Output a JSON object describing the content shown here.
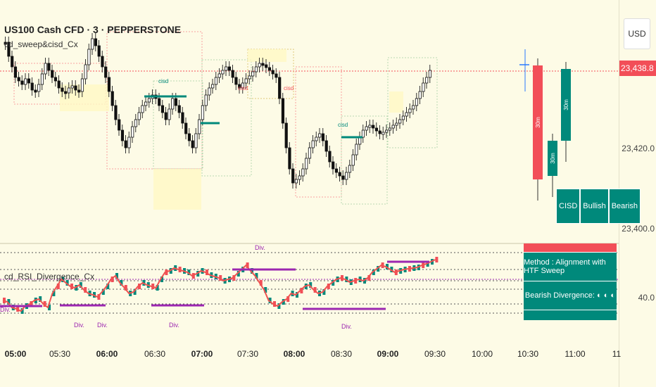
{
  "header": {
    "symbol_line": "US100 Cash CFD · 3 · PEPPERSTONE",
    "indicator_main": "cd_sweep&cisd_Cx",
    "indicator_osc": "cd_RSI_Divergence_Cx",
    "currency_button": "USD"
  },
  "price_axis": {
    "current_price": "23,438.8",
    "ticks": [
      "23,420.0",
      "23,400.0"
    ],
    "osc_tick": "40.0"
  },
  "time_axis": [
    "05:00",
    "05:30",
    "06:00",
    "06:30",
    "07:00",
    "07:30",
    "08:00",
    "08:30",
    "09:00",
    "09:30",
    "10:00",
    "10:30",
    "11:00",
    "11"
  ],
  "time_axis_bold": [
    "05:00",
    "06:00",
    "07:00",
    "08:00",
    "09:00"
  ],
  "htf_candles": [
    "30m",
    "30m",
    "30m"
  ],
  "legend": [
    "CISD",
    "Bullish",
    "Bearish"
  ],
  "info_table": {
    "method": "Method : Alignment with HTF Sweep",
    "divergence": "Bearish Divergence:  ◐ ◐ ◐"
  },
  "labels": {
    "cisd": "cisd",
    "div": "Div."
  },
  "colors": {
    "bull": "#00897b",
    "bear": "#000000",
    "red": "#f24e58",
    "purple": "#9c27b0",
    "yellow_box": "#fff9c4"
  }
}
